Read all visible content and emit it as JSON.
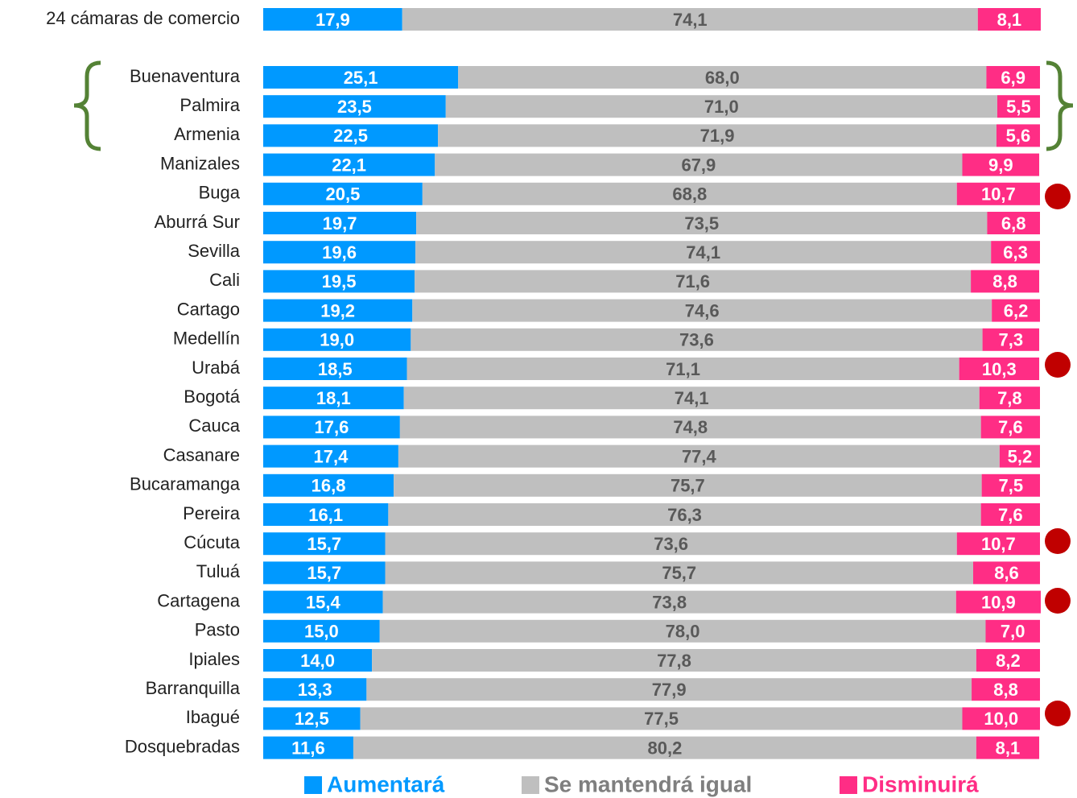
{
  "chart_data": {
    "type": "stacked-bar-horizontal",
    "categories": [
      "24 cámaras de comercio",
      "Buenaventura",
      "Palmira",
      "Armenia",
      "Manizales",
      "Buga",
      "Aburrá Sur",
      "Sevilla",
      "Cali",
      "Cartago",
      "Medellín",
      "Urabá",
      "Bogotá",
      "Cauca",
      "Casanare",
      "Bucaramanga",
      "Pereira",
      "Cúcuta",
      "Tuluá",
      "Cartagena",
      "Pasto",
      "Ipiales",
      "Barranquilla",
      "Ibagué",
      "Dosquebradas"
    ],
    "xlim": [
      0,
      100
    ],
    "series": [
      {
        "name": "Aumentará",
        "color": "#0099ff",
        "label_color": "#ffffff",
        "values": [
          17.9,
          25.1,
          23.5,
          22.5,
          22.1,
          20.5,
          19.7,
          19.6,
          19.5,
          19.2,
          19.0,
          18.5,
          18.1,
          17.6,
          17.4,
          16.8,
          16.1,
          15.7,
          15.7,
          15.4,
          15.0,
          14.0,
          13.3,
          12.5,
          11.6
        ],
        "value_labels": [
          "17,9",
          "25,1",
          "23,5",
          "22,5",
          "22,1",
          "20,5",
          "19,7",
          "19,6",
          "19,5",
          "19,2",
          "19,0",
          "18,5",
          "18,1",
          "17,6",
          "17,4",
          "16,8",
          "16,1",
          "15,7",
          "15,7",
          "15,4",
          "15,0",
          "14,0",
          "13,3",
          "12,5",
          "11,6"
        ]
      },
      {
        "name": "Se mantendrá igual",
        "color": "#bfbfbf",
        "label_color": "#595959",
        "values": [
          74.1,
          68.0,
          71.0,
          71.9,
          67.9,
          68.8,
          73.5,
          74.1,
          71.6,
          74.6,
          73.6,
          71.1,
          74.1,
          74.8,
          77.4,
          75.7,
          76.3,
          73.6,
          75.7,
          73.8,
          78.0,
          77.8,
          77.9,
          77.5,
          80.2
        ],
        "value_labels": [
          "74,1",
          "68,0",
          "71,0",
          "71,9",
          "67,9",
          "68,8",
          "73,5",
          "74,1",
          "71,6",
          "74,6",
          "73,6",
          "71,1",
          "74,1",
          "74,8",
          "77,4",
          "75,7",
          "76,3",
          "73,6",
          "75,7",
          "73,8",
          "78,0",
          "77,8",
          "77,9",
          "77,5",
          "80,2"
        ]
      },
      {
        "name": "Disminuirá",
        "color": "#ff2d85",
        "label_color": "#ffffff",
        "values": [
          8.1,
          6.9,
          5.5,
          5.6,
          9.9,
          10.7,
          6.8,
          6.3,
          8.8,
          6.2,
          7.3,
          10.3,
          7.8,
          7.6,
          5.2,
          7.5,
          7.6,
          10.7,
          8.6,
          10.9,
          7.0,
          8.2,
          8.8,
          10.0,
          8.1
        ],
        "value_labels": [
          "8,1",
          "6,9",
          "5,5",
          "5,6",
          "9,9",
          "10,7",
          "6,8",
          "6,3",
          "8,8",
          "6,2",
          "7,3",
          "10,3",
          "7,8",
          "7,6",
          "5,2",
          "7,5",
          "7,6",
          "10,7",
          "8,6",
          "10,9",
          "7,0",
          "8,2",
          "8,8",
          "10,0",
          "8,1"
        ]
      }
    ]
  }
}
